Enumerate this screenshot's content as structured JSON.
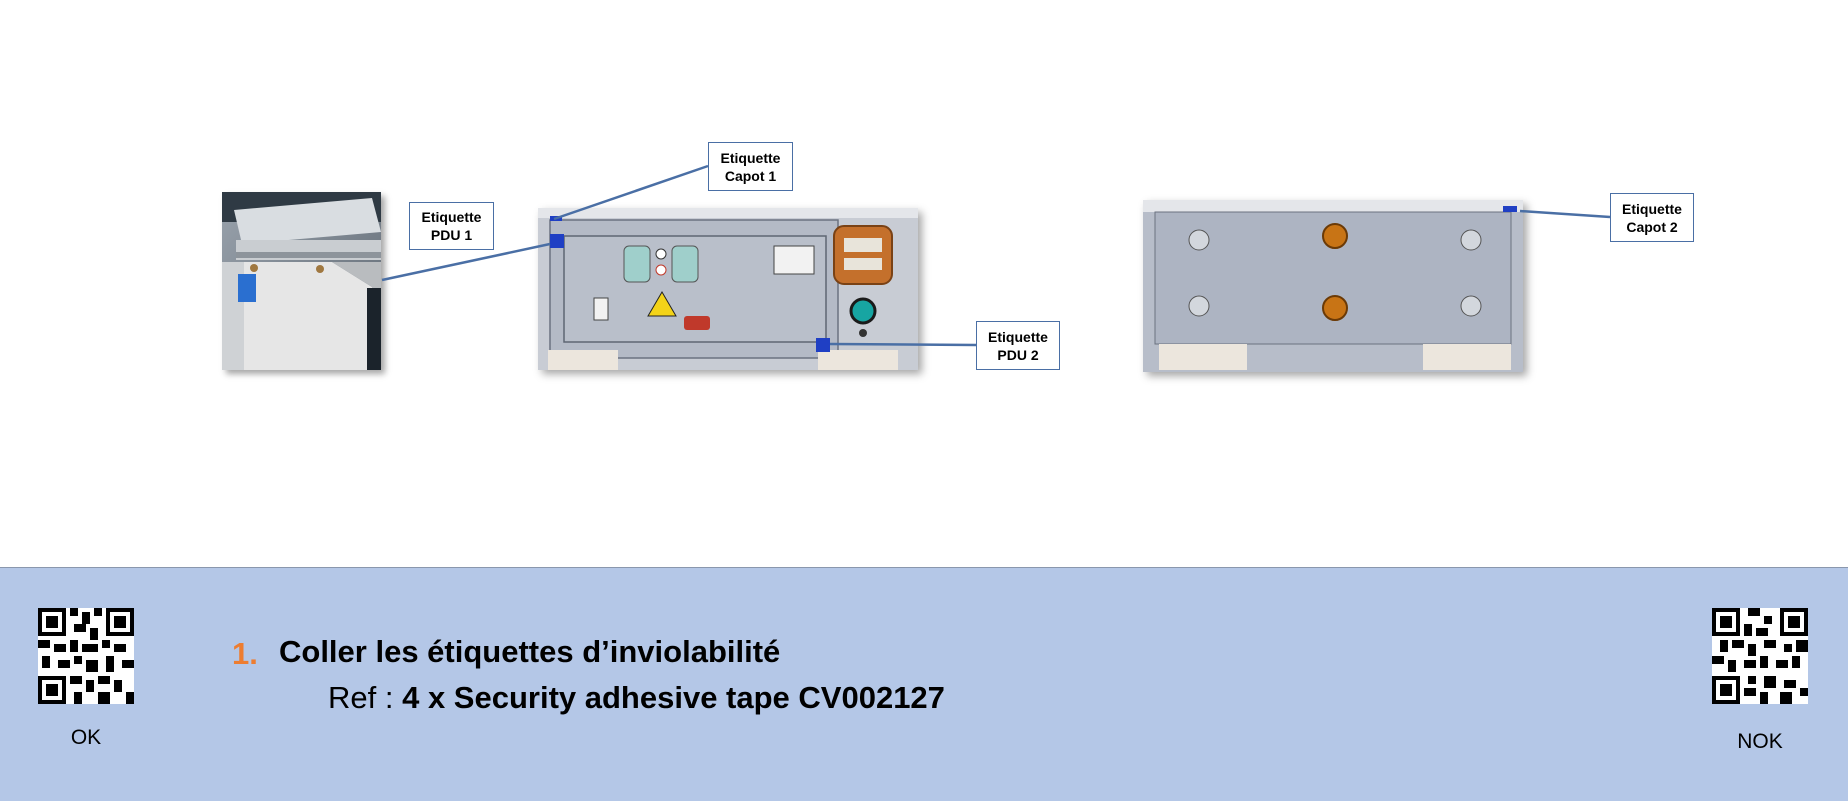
{
  "callouts": {
    "capot1": [
      "Etiquette",
      "Capot 1"
    ],
    "pdu1": [
      "Etiquette",
      "PDU 1"
    ],
    "pdu2": [
      "Etiquette",
      "PDU 2"
    ],
    "capot2": [
      "Etiquette",
      "Capot 2"
    ]
  },
  "footer": {
    "ok_label": "OK",
    "nok_label": "NOK",
    "step": {
      "number": "1.",
      "title": "Coller les étiquettes d’inviolabilité",
      "ref_prefix": "Ref :",
      "ref_value": "4 x Security adhesive tape CV002127"
    }
  },
  "colors": {
    "footer_bg": "#b4c7e7",
    "step_number": "#ed7d31",
    "callout_line": "#4a6fa5",
    "label_tape": "#1f3fc4"
  }
}
